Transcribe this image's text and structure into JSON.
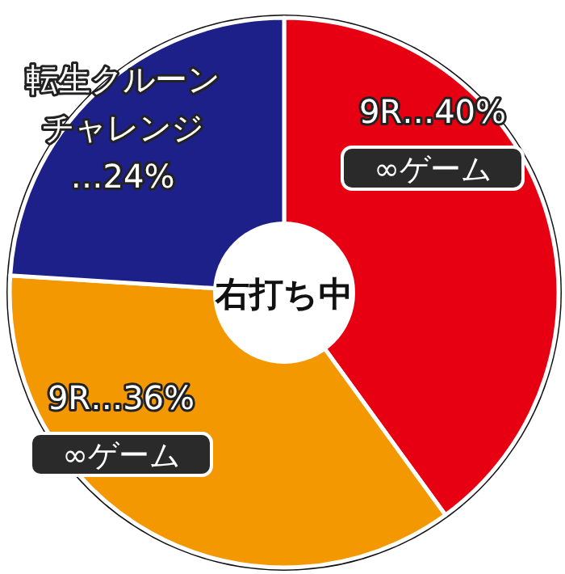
{
  "chart_data": {
    "type": "donut",
    "title": "右打ち中",
    "categories": [
      "9R",
      "9R",
      "転生クルーンチャレンジ"
    ],
    "values": [
      40,
      36,
      24
    ],
    "value_labels": [
      "…40%",
      "…36%",
      "…24%"
    ],
    "colors": [
      "#e60012",
      "#f39800",
      "#1d2088"
    ],
    "annotations": [
      "∞ゲーム",
      "∞ゲーム"
    ]
  }
}
